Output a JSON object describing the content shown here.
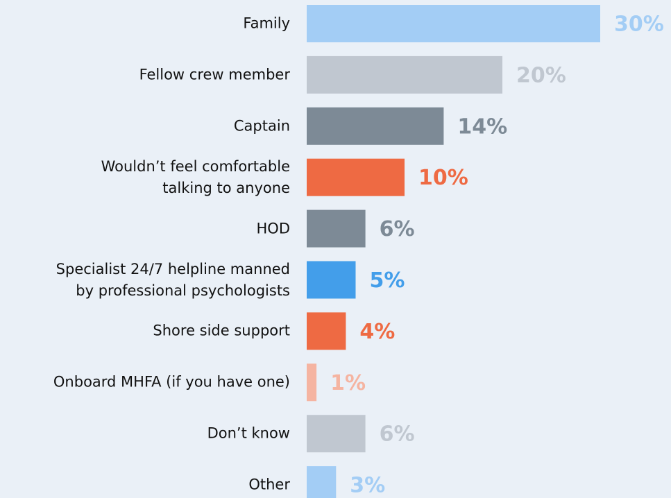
{
  "chart_data": {
    "type": "bar",
    "orientation": "horizontal",
    "categories": [
      "Family",
      "Fellow crew member",
      "Captain",
      "Wouldn’t feel comfortable\ntalking to anyone",
      "HOD",
      "Specialist 24/7 helpline manned\nby professional psychologists",
      "Shore side support",
      "Onboard MHFA (if you have one)",
      "Don’t know",
      "Other"
    ],
    "values": [
      30,
      20,
      14,
      10,
      6,
      5,
      4,
      1,
      6,
      3
    ],
    "value_labels": [
      "30%",
      "20%",
      "14%",
      "10%",
      "6%",
      "5%",
      "4%",
      "1%",
      "6%",
      "3%"
    ],
    "colors": [
      "#a3cdf5",
      "#c0c7d0",
      "#7d8a96",
      "#ee6a43",
      "#7d8a96",
      "#439eea",
      "#ee6a43",
      "#f5b4a1",
      "#c0c7d0",
      "#a3cdf5"
    ]
  }
}
